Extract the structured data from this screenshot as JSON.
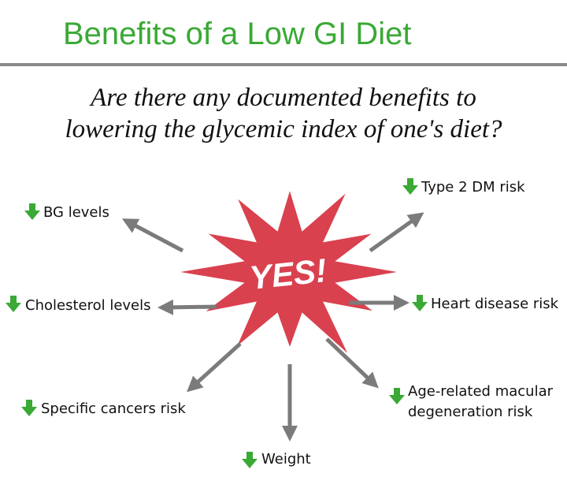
{
  "header": {
    "title": "Benefits of a Low GI Diet"
  },
  "question": {
    "lines": [
      "Are there any documented benefits to",
      "lowering the glycemic index of one's diet?"
    ]
  },
  "center": {
    "label": "YES!"
  },
  "benefits": [
    {
      "lines": [
        "BG levels"
      ]
    },
    {
      "lines": [
        "Type 2 DM risk"
      ]
    },
    {
      "lines": [
        "Cholesterol levels"
      ]
    },
    {
      "lines": [
        "Heart disease risk"
      ]
    },
    {
      "lines": [
        "Specific cancers risk"
      ]
    },
    {
      "lines": [
        "Weight"
      ]
    },
    {
      "lines": [
        "Age-related macular",
        "degeneration risk"
      ]
    }
  ]
}
